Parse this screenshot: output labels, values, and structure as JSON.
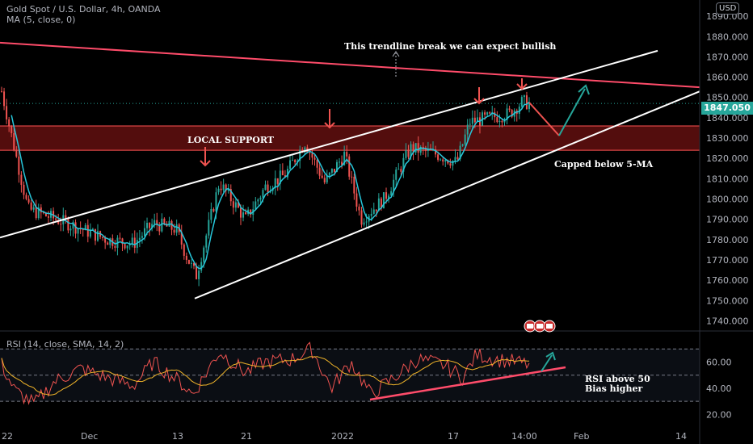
{
  "header": {
    "title": "Gold Spot / U.S. Dollar, 4h, OANDA",
    "ma_label": "MA (5, close, 0)",
    "rsi_label": "RSI (14, close, SMA, 14, 2)",
    "currency": "USD",
    "last_price": "1847.050"
  },
  "annotations": {
    "trendline_break": "This trendline break we can expect bullish",
    "local_support": "LOCAL SUPPORT",
    "capped": "Capped below 5-MA",
    "rsi_line1": "RSI above 50",
    "rsi_line2": "Bias higher"
  },
  "colors": {
    "background": "#000000",
    "bull_candle": "#26a69a",
    "bear_candle": "#ef5350",
    "ma_line": "#26c6da",
    "trendlines": "#ffffff",
    "resistance": "#ff4c6a",
    "support_zone": "#b71c1c",
    "rsi_line": "#ef5350",
    "rsi_signal": "#f0b429",
    "arrow_up": "#26a69a",
    "arrow_down": "#ef5350"
  },
  "chart_data": [
    {
      "type": "candlestick",
      "title": "Gold Spot / U.S. Dollar, 4h, OANDA",
      "y_ticks": [
        1740,
        1750,
        1760,
        1770,
        1780,
        1790,
        1800,
        1810,
        1820,
        1830,
        1840,
        1850,
        1860,
        1870,
        1880,
        1890
      ],
      "y_tick_labels": [
        "1740.000",
        "1750.000",
        "1760.000",
        "1770.000",
        "1780.000",
        "1790.000",
        "1800.000",
        "1810.000",
        "1820.000",
        "1830.000",
        "1840.000",
        "1850.000",
        "1860.000",
        "1870.000",
        "1880.000",
        "1890.000"
      ],
      "ylim": [
        1735,
        1898
      ],
      "x_tick_labels": [
        "22",
        "Dec",
        "13",
        "21",
        "2022",
        "17",
        "14:00",
        "Feb",
        "14"
      ],
      "last_price": 1847.05,
      "close_path_keypoints": [
        [
          0,
          1853
        ],
        [
          0.04,
          1795
        ],
        [
          0.1,
          1788
        ],
        [
          0.16,
          1780
        ],
        [
          0.2,
          1778
        ],
        [
          0.23,
          1788
        ],
        [
          0.265,
          1785
        ],
        [
          0.28,
          1772
        ],
        [
          0.295,
          1762
        ],
        [
          0.33,
          1808
        ],
        [
          0.37,
          1790
        ],
        [
          0.4,
          1806
        ],
        [
          0.43,
          1812
        ],
        [
          0.46,
          1828
        ],
        [
          0.49,
          1808
        ],
        [
          0.52,
          1822
        ],
        [
          0.545,
          1790
        ],
        [
          0.58,
          1800
        ],
        [
          0.62,
          1825
        ],
        [
          0.66,
          1822
        ],
        [
          0.69,
          1818
        ],
        [
          0.71,
          1838
        ],
        [
          0.74,
          1840
        ],
        [
          0.77,
          1842
        ],
        [
          0.79,
          1848
        ],
        [
          0.8,
          1847
        ]
      ],
      "ma": {
        "name": "MA (5, close, 0)",
        "period": 5
      },
      "local_support_zone": [
        1828,
        1832
      ],
      "resistance_line": {
        "from": [
          "start",
          1877
        ],
        "to": [
          "end",
          1855
        ]
      },
      "channel_upper": {
        "from": [
          "22",
          1781
        ],
        "to": [
          "Feb",
          1873
        ]
      },
      "channel_lower": {
        "from": [
          "13",
          1752
        ],
        "to": [
          "end",
          1853
        ]
      }
    },
    {
      "type": "line",
      "title": "RSI (14, close, SMA, 14, 2)",
      "y_ticks": [
        20,
        40,
        60
      ],
      "y_tick_labels": [
        "20.00",
        "40.00",
        "60.00"
      ],
      "ylim": [
        11,
        80
      ],
      "bands": [
        30,
        50,
        70
      ],
      "rsi_keypoints": [
        [
          0,
          58
        ],
        [
          0.02,
          38
        ],
        [
          0.05,
          28
        ],
        [
          0.08,
          45
        ],
        [
          0.12,
          55
        ],
        [
          0.16,
          48
        ],
        [
          0.2,
          42
        ],
        [
          0.23,
          60
        ],
        [
          0.27,
          45
        ],
        [
          0.29,
          35
        ],
        [
          0.33,
          68
        ],
        [
          0.37,
          52
        ],
        [
          0.4,
          60
        ],
        [
          0.44,
          62
        ],
        [
          0.47,
          70
        ],
        [
          0.5,
          40
        ],
        [
          0.53,
          60
        ],
        [
          0.56,
          35
        ],
        [
          0.6,
          50
        ],
        [
          0.63,
          62
        ],
        [
          0.67,
          58
        ],
        [
          0.7,
          48
        ],
        [
          0.72,
          66
        ],
        [
          0.75,
          62
        ],
        [
          0.78,
          60
        ],
        [
          0.8,
          58
        ]
      ]
    }
  ]
}
